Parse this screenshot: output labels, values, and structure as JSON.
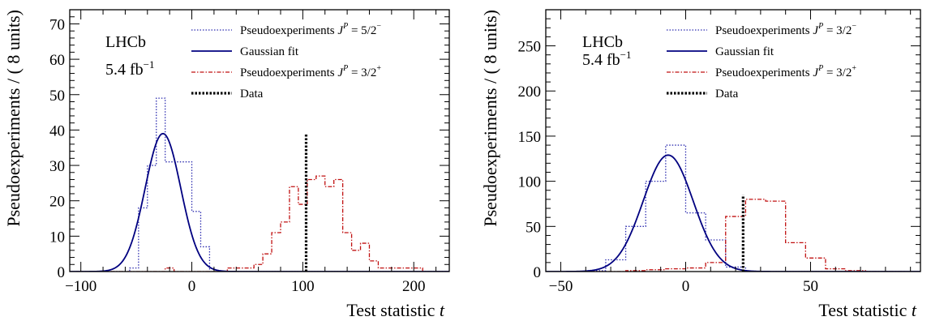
{
  "figure": {
    "colors": {
      "blue": "#2f2fb0",
      "fit": "#000080",
      "red": "#c01010",
      "data": "#000000"
    }
  },
  "chart_data": [
    {
      "type": "histogram",
      "xlabel_main": "Test statistic ",
      "xlabel_var": "t",
      "ylabel": "Pseudoexperiments / ( 8 units)",
      "lhcb_label": "LHCb",
      "lumi_value": "5.4 fb",
      "lumi_exp": "−1",
      "xlim": [
        -110,
        232
      ],
      "ylim": [
        0,
        74
      ],
      "xticks": [
        -100,
        0,
        100,
        200
      ],
      "yticks": [
        0,
        10,
        20,
        30,
        40,
        50,
        60,
        70
      ],
      "xminor": 20,
      "yminor": 2,
      "legend": [
        {
          "label": "Pseudoexperiments ",
          "var": "J",
          "sup": "P",
          "rest": " = 5/2",
          "rest_sup": "−",
          "style": "dotted-blue"
        },
        {
          "label": "Gaussian fit",
          "style": "solid-navy"
        },
        {
          "label": "Pseudoexperiments ",
          "var": "J",
          "sup": "P",
          "rest": " = 3/2",
          "rest_sup": "+",
          "style": "dashdot-red"
        },
        {
          "label": "Data",
          "style": "dotted-black"
        }
      ],
      "hist_edges": [
        -104,
        -96,
        -88,
        -80,
        -72,
        -64,
        -56,
        -48,
        -40,
        -32,
        -24,
        -16,
        -8,
        0,
        8,
        16,
        24,
        32,
        40,
        48,
        56,
        64,
        72,
        80,
        88,
        96,
        104,
        112,
        120,
        128,
        136,
        144,
        152,
        160,
        168,
        176,
        184,
        192,
        200,
        208,
        216,
        224,
        232
      ],
      "series": [
        {
          "name": "Pseudoexperiments J^P = 5/2−",
          "values": [
            0,
            0,
            0,
            0,
            0,
            0,
            1,
            18,
            30,
            49,
            31,
            31,
            31,
            17,
            7,
            0,
            0,
            0,
            0,
            0,
            0,
            0,
            0,
            0,
            0,
            0,
            0,
            0,
            0,
            0,
            0,
            0,
            0,
            0,
            0,
            0,
            0,
            0,
            0,
            0,
            0,
            0
          ]
        },
        {
          "name": "Pseudoexperiments J^P = 3/2+",
          "values": [
            0,
            0,
            0,
            0,
            0,
            0,
            0,
            0,
            0,
            0,
            1,
            0,
            0,
            0,
            0,
            0,
            0,
            1,
            1,
            1,
            2,
            5,
            11,
            14,
            24,
            19,
            26,
            27,
            24,
            26,
            11,
            6,
            8,
            3,
            1,
            1,
            1,
            1,
            1,
            0,
            0,
            0
          ]
        }
      ],
      "gauss_fit": {
        "mean": -26,
        "sigma": 16,
        "peak": 39
      },
      "data_line": {
        "x": 103,
        "height": 39
      }
    },
    {
      "type": "histogram",
      "xlabel_main": "Test statistic ",
      "xlabel_var": "t",
      "ylabel": "Pseudoexperiments / ( 8 units)",
      "lhcb_label": "LHCb",
      "lumi_value": "5.4 fb",
      "lumi_exp": "−1",
      "xlim": [
        -56,
        94
      ],
      "ylim": [
        0,
        290
      ],
      "xticks": [
        -50,
        0,
        50
      ],
      "yticks": [
        0,
        50,
        100,
        150,
        200,
        250
      ],
      "xminor": 10,
      "yminor": 10,
      "legend": [
        {
          "label": "Pseudoexperiments ",
          "var": "J",
          "sup": "P",
          "rest": " = 3/2",
          "rest_sup": "−",
          "style": "dotted-blue"
        },
        {
          "label": "Gaussian fit",
          "style": "solid-navy"
        },
        {
          "label": "Pseudoexperiments ",
          "var": "J",
          "sup": "P",
          "rest": " = 3/2",
          "rest_sup": "+",
          "style": "dashdot-red"
        },
        {
          "label": "Data",
          "style": "dotted-black"
        }
      ],
      "hist_edges": [
        -48,
        -40,
        -32,
        -24,
        -16,
        -8,
        0,
        8,
        16,
        24,
        32,
        40,
        48,
        56,
        64,
        72,
        80,
        88
      ],
      "series": [
        {
          "name": "Pseudoexperiments J^P = 3/2−",
          "values": [
            0,
            1,
            13,
            50,
            100,
            140,
            65,
            35,
            5,
            0,
            0,
            0,
            0,
            0,
            0,
            0,
            0
          ]
        },
        {
          "name": "Pseudoexperiments J^P = 3/2+",
          "values": [
            0,
            0,
            0,
            1,
            2,
            3,
            4,
            10,
            61,
            80,
            78,
            32,
            15,
            3,
            1,
            0,
            0
          ]
        }
      ],
      "gauss_fit": {
        "mean": -7,
        "sigma": 10,
        "peak": 129
      },
      "data_line": {
        "x": 23,
        "height": 85
      }
    }
  ]
}
